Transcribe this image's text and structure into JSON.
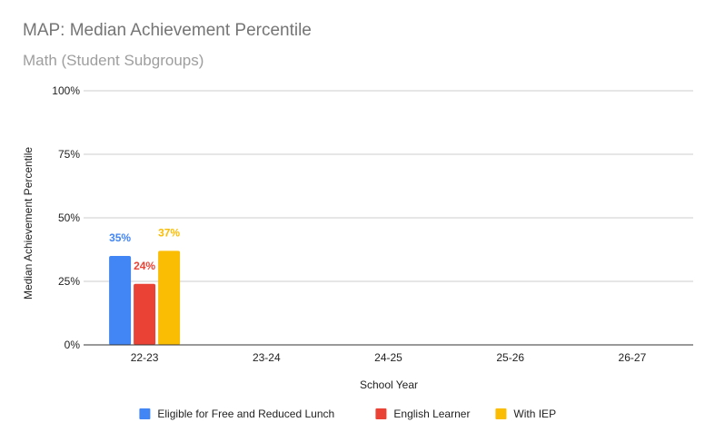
{
  "chart_data": {
    "type": "bar",
    "title": "MAP: Median Achievement Percentile",
    "subtitle": "Math (Student Subgroups)",
    "xlabel": "School Year",
    "ylabel": "Median Achievement Percentile",
    "categories": [
      "22-23",
      "23-24",
      "24-25",
      "25-26",
      "26-27"
    ],
    "y_ticks": [
      "0%",
      "25%",
      "50%",
      "75%",
      "100%"
    ],
    "ylim": [
      0,
      100
    ],
    "grid": true,
    "legend_position": "bottom",
    "series": [
      {
        "name": "Eligible for Free and Reduced Lunch",
        "color": "#4285F4",
        "values": [
          35,
          null,
          null,
          null,
          null
        ],
        "labels": [
          "35%",
          "",
          "",
          "",
          ""
        ]
      },
      {
        "name": "English Learner",
        "color": "#EA4335",
        "values": [
          24,
          null,
          null,
          null,
          null
        ],
        "labels": [
          "24%",
          "",
          "",
          "",
          ""
        ]
      },
      {
        "name": "With IEP",
        "color": "#FBBC04",
        "values": [
          37,
          null,
          null,
          null,
          null
        ],
        "labels": [
          "37%",
          "",
          "",
          "",
          ""
        ]
      }
    ]
  }
}
